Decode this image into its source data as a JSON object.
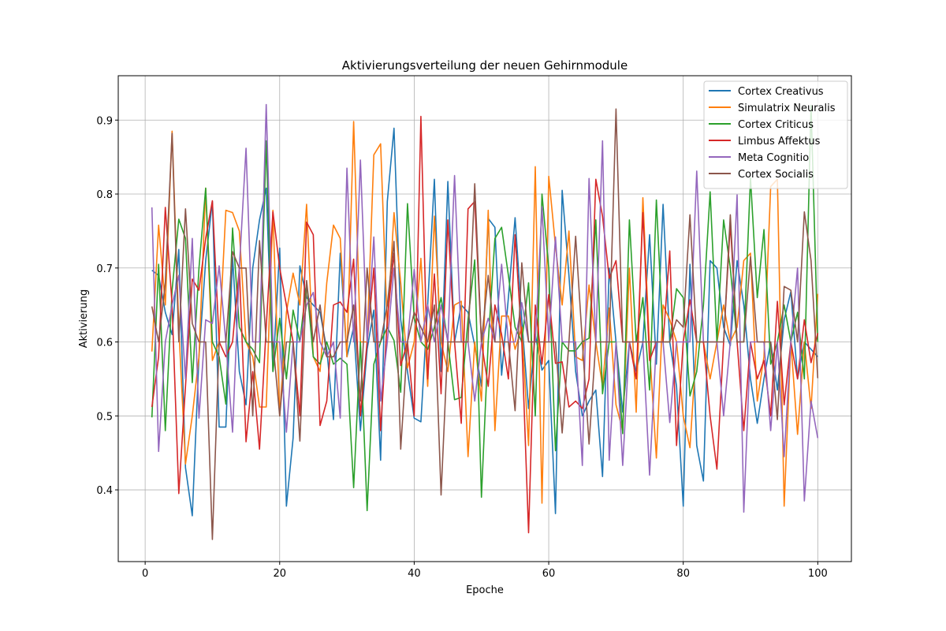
{
  "chart_data": {
    "type": "line",
    "title": "Aktivierungsverteilung der neuen Gehirnmodule",
    "xlabel": "Epoche",
    "ylabel": "Aktivierung",
    "xlim": [
      -4,
      105
    ],
    "ylim": [
      0.303,
      0.96
    ],
    "xticks": [
      0,
      20,
      40,
      60,
      80,
      100
    ],
    "yticks": [
      0.4,
      0.5,
      0.6,
      0.7,
      0.8,
      0.9
    ],
    "grid": true,
    "legend_position": "top-right",
    "x_start": 1,
    "series": [
      {
        "name": "Cortex Creativus",
        "color": "#1f77b4",
        "values": [
          0.697,
          0.69,
          0.64,
          0.61,
          0.725,
          0.43,
          0.365,
          0.58,
          0.71,
          0.79,
          0.485,
          0.485,
          0.715,
          0.56,
          0.515,
          0.7,
          0.765,
          0.808,
          0.56,
          0.727,
          0.378,
          0.47,
          0.703,
          0.66,
          0.65,
          0.64,
          0.59,
          0.495,
          0.72,
          0.58,
          0.62,
          0.48,
          0.59,
          0.643,
          0.44,
          0.79,
          0.889,
          0.63,
          0.56,
          0.497,
          0.492,
          0.65,
          0.82,
          0.56,
          0.817,
          0.6,
          0.65,
          0.64,
          0.595,
          0.54,
          0.767,
          0.755,
          0.555,
          0.66,
          0.768,
          0.63,
          0.51,
          0.61,
          0.562,
          0.575,
          0.368,
          0.805,
          0.69,
          0.56,
          0.5,
          0.52,
          0.535,
          0.418,
          0.7,
          0.6,
          0.505,
          0.6,
          0.56,
          0.6,
          0.745,
          0.57,
          0.786,
          0.6,
          0.54,
          0.378,
          0.705,
          0.46,
          0.412,
          0.71,
          0.7,
          0.62,
          0.595,
          0.71,
          0.65,
          0.55,
          0.49,
          0.55,
          0.6,
          0.535,
          0.63,
          0.668,
          0.55,
          0.6,
          0.59,
          0.58
        ]
      },
      {
        "name": "Simulatrix Neuralis",
        "color": "#ff7f0e",
        "values": [
          0.587,
          0.758,
          0.65,
          0.885,
          0.62,
          0.435,
          0.5,
          0.58,
          0.808,
          0.575,
          0.6,
          0.778,
          0.775,
          0.75,
          0.6,
          0.58,
          0.512,
          0.512,
          0.778,
          0.5,
          0.64,
          0.693,
          0.65,
          0.786,
          0.58,
          0.56,
          0.68,
          0.758,
          0.74,
          0.58,
          0.898,
          0.6,
          0.6,
          0.853,
          0.868,
          0.62,
          0.775,
          0.68,
          0.565,
          0.6,
          0.713,
          0.54,
          0.77,
          0.6,
          0.56,
          0.65,
          0.655,
          0.445,
          0.6,
          0.52,
          0.778,
          0.48,
          0.635,
          0.635,
          0.59,
          0.62,
          0.46,
          0.837,
          0.382,
          0.824,
          0.73,
          0.65,
          0.75,
          0.58,
          0.575,
          0.677,
          0.6,
          0.54,
          0.646,
          0.515,
          0.48,
          0.7,
          0.505,
          0.795,
          0.59,
          0.443,
          0.65,
          0.63,
          0.6,
          0.5,
          0.457,
          0.6,
          0.6,
          0.55,
          0.6,
          0.65,
          0.6,
          0.62,
          0.71,
          0.72,
          0.52,
          0.58,
          0.81,
          0.82,
          0.378,
          0.6,
          0.475,
          0.6,
          0.51,
          0.665
        ]
      },
      {
        "name": "Cortex Criticus",
        "color": "#2ca02c",
        "values": [
          0.498,
          0.705,
          0.48,
          0.67,
          0.766,
          0.74,
          0.545,
          0.7,
          0.808,
          0.6,
          0.58,
          0.516,
          0.754,
          0.62,
          0.6,
          0.59,
          0.572,
          0.872,
          0.56,
          0.632,
          0.55,
          0.643,
          0.6,
          0.68,
          0.58,
          0.57,
          0.6,
          0.57,
          0.578,
          0.57,
          0.403,
          0.6,
          0.372,
          0.57,
          0.6,
          0.62,
          0.602,
          0.532,
          0.787,
          0.632,
          0.6,
          0.59,
          0.62,
          0.66,
          0.6,
          0.522,
          0.525,
          0.63,
          0.711,
          0.39,
          0.6,
          0.74,
          0.755,
          0.69,
          0.62,
          0.6,
          0.68,
          0.5,
          0.8,
          0.7,
          0.453,
          0.6,
          0.588,
          0.588,
          0.6,
          0.605,
          0.765,
          0.53,
          0.6,
          0.6,
          0.476,
          0.765,
          0.6,
          0.66,
          0.535,
          0.792,
          0.6,
          0.6,
          0.672,
          0.66,
          0.527,
          0.56,
          0.65,
          0.803,
          0.6,
          0.765,
          0.7,
          0.6,
          0.6,
          0.822,
          0.66,
          0.752,
          0.57,
          0.6,
          0.65,
          0.6,
          0.64,
          0.55,
          0.92,
          0.6
        ]
      },
      {
        "name": "Limbus Affektus",
        "color": "#d62728",
        "values": [
          0.512,
          0.58,
          0.782,
          0.65,
          0.395,
          0.54,
          0.685,
          0.67,
          0.74,
          0.791,
          0.6,
          0.58,
          0.6,
          0.7,
          0.465,
          0.56,
          0.455,
          0.62,
          0.776,
          0.7,
          0.65,
          0.6,
          0.5,
          0.762,
          0.745,
          0.487,
          0.52,
          0.65,
          0.654,
          0.64,
          0.712,
          0.5,
          0.6,
          0.7,
          0.48,
          0.63,
          0.72,
          0.568,
          0.6,
          0.5,
          0.905,
          0.55,
          0.692,
          0.53,
          0.765,
          0.6,
          0.49,
          0.78,
          0.79,
          0.6,
          0.54,
          0.65,
          0.61,
          0.55,
          0.745,
          0.6,
          0.342,
          0.65,
          0.57,
          0.664,
          0.571,
          0.573,
          0.512,
          0.52,
          0.51,
          0.55,
          0.82,
          0.77,
          0.686,
          0.71,
          0.6,
          0.6,
          0.55,
          0.775,
          0.575,
          0.6,
          0.6,
          0.723,
          0.46,
          0.6,
          0.657,
          0.6,
          0.6,
          0.5,
          0.428,
          0.6,
          0.76,
          0.6,
          0.48,
          0.6,
          0.55,
          0.575,
          0.5,
          0.655,
          0.515,
          0.6,
          0.55,
          0.63,
          0.572,
          0.612
        ]
      },
      {
        "name": "Meta Cognitio",
        "color": "#9467bd",
        "values": [
          0.782,
          0.452,
          0.6,
          0.65,
          0.69,
          0.55,
          0.74,
          0.497,
          0.63,
          0.625,
          0.703,
          0.6,
          0.478,
          0.7,
          0.862,
          0.6,
          0.6,
          0.921,
          0.6,
          0.6,
          0.478,
          0.6,
          0.6,
          0.65,
          0.667,
          0.6,
          0.58,
          0.6,
          0.497,
          0.835,
          0.6,
          0.846,
          0.6,
          0.742,
          0.52,
          0.6,
          0.7,
          0.6,
          0.6,
          0.698,
          0.6,
          0.65,
          0.6,
          0.65,
          0.6,
          0.825,
          0.6,
          0.6,
          0.52,
          0.6,
          0.632,
          0.6,
          0.705,
          0.6,
          0.6,
          0.653,
          0.6,
          0.6,
          0.783,
          0.6,
          0.742,
          0.6,
          0.6,
          0.6,
          0.433,
          0.821,
          0.6,
          0.872,
          0.44,
          0.6,
          0.433,
          0.6,
          0.6,
          0.6,
          0.42,
          0.6,
          0.6,
          0.491,
          0.6,
          0.6,
          0.6,
          0.831,
          0.6,
          0.6,
          0.6,
          0.5,
          0.6,
          0.799,
          0.37,
          0.6,
          0.6,
          0.6,
          0.48,
          0.6,
          0.445,
          0.6,
          0.7,
          0.385,
          0.52,
          0.47
        ]
      },
      {
        "name": "Cortex Socialis",
        "color": "#8c564b",
        "values": [
          0.648,
          0.6,
          0.68,
          0.882,
          0.6,
          0.78,
          0.625,
          0.6,
          0.6,
          0.333,
          0.6,
          0.6,
          0.722,
          0.7,
          0.7,
          0.5,
          0.737,
          0.6,
          0.6,
          0.5,
          0.6,
          0.6,
          0.466,
          0.683,
          0.6,
          0.65,
          0.58,
          0.58,
          0.6,
          0.6,
          0.65,
          0.52,
          0.7,
          0.6,
          0.6,
          0.65,
          0.736,
          0.455,
          0.6,
          0.64,
          0.62,
          0.6,
          0.65,
          0.393,
          0.6,
          0.6,
          0.6,
          0.6,
          0.814,
          0.6,
          0.69,
          0.6,
          0.6,
          0.6,
          0.507,
          0.707,
          0.6,
          0.6,
          0.6,
          0.6,
          0.6,
          0.477,
          0.6,
          0.743,
          0.6,
          0.462,
          0.6,
          0.6,
          0.6,
          0.915,
          0.6,
          0.6,
          0.6,
          0.6,
          0.6,
          0.6,
          0.6,
          0.6,
          0.63,
          0.62,
          0.772,
          0.6,
          0.6,
          0.6,
          0.6,
          0.6,
          0.772,
          0.6,
          0.6,
          0.715,
          0.6,
          0.6,
          0.6,
          0.495,
          0.675,
          0.67,
          0.6,
          0.776,
          0.71,
          0.551
        ]
      }
    ]
  }
}
